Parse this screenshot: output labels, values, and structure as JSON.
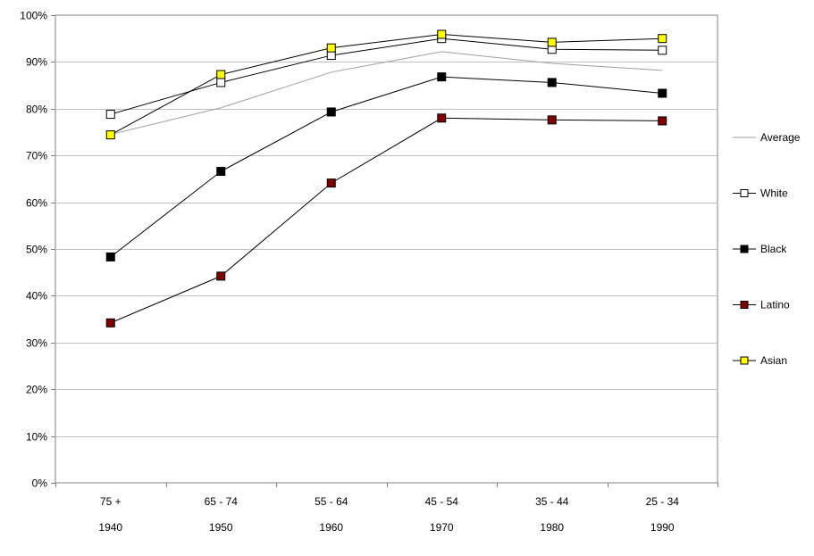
{
  "chart_data": {
    "type": "line",
    "title": "",
    "xlabel": "",
    "ylabel": "",
    "ylim": [
      0,
      100
    ],
    "y_ticks": [
      "0%",
      "10%",
      "20%",
      "30%",
      "40%",
      "50%",
      "60%",
      "70%",
      "80%",
      "90%",
      "100%"
    ],
    "categories": [
      "75 +",
      "65 - 74",
      "55 - 64",
      "45 - 54",
      "35 - 44",
      "25 - 34"
    ],
    "categories_secondary": [
      "1940",
      "1950",
      "1960",
      "1970",
      "1980",
      "1990"
    ],
    "grid": true,
    "legend_position": "right",
    "series": [
      {
        "name": "Average",
        "values": [
          74.5,
          80.2,
          87.8,
          92.2,
          89.7,
          88.2
        ],
        "color": "#a0a0a0",
        "marker": "none"
      },
      {
        "name": "White",
        "values": [
          78.8,
          85.6,
          91.4,
          95.0,
          92.7,
          92.5
        ],
        "color": "#000000",
        "marker": "#ffffff"
      },
      {
        "name": "Black",
        "values": [
          48.3,
          66.6,
          79.3,
          86.8,
          85.6,
          83.3
        ],
        "color": "#000000",
        "marker": "#000000"
      },
      {
        "name": "Latino",
        "values": [
          34.2,
          44.2,
          64.1,
          78.0,
          77.6,
          77.4
        ],
        "color": "#000000",
        "marker": "#800000"
      },
      {
        "name": "Asian",
        "values": [
          74.4,
          87.3,
          93.0,
          95.9,
          94.2,
          95.0
        ],
        "color": "#000000",
        "marker": "#ffff00"
      }
    ]
  }
}
